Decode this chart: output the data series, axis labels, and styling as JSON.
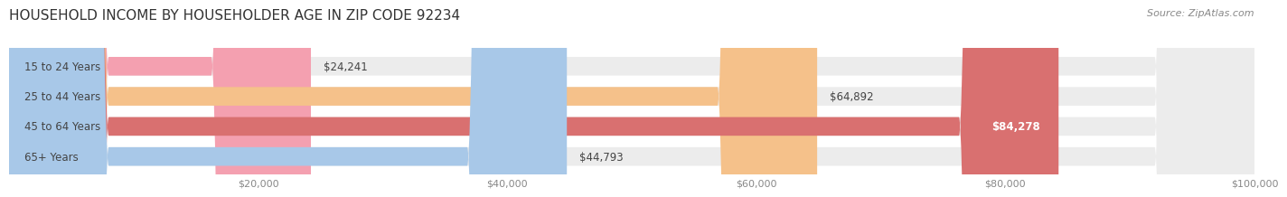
{
  "title": "HOUSEHOLD INCOME BY HOUSEHOLDER AGE IN ZIP CODE 92234",
  "source": "Source: ZipAtlas.com",
  "categories": [
    "15 to 24 Years",
    "25 to 44 Years",
    "45 to 64 Years",
    "65+ Years"
  ],
  "values": [
    24241,
    64892,
    84278,
    44793
  ],
  "bar_colors": [
    "#f4a0b0",
    "#f5c18a",
    "#d97070",
    "#a8c8e8"
  ],
  "label_colors": [
    "#555555",
    "#555555",
    "#ffffff",
    "#555555"
  ],
  "bar_background": "#eeeeee",
  "background_color": "#ffffff",
  "xlim": [
    0,
    100000
  ],
  "xticks": [
    0,
    20000,
    40000,
    60000,
    80000,
    100000
  ],
  "xtick_labels": [
    "",
    "$20,000",
    "$40,000",
    "$60,000",
    "$80,000",
    "$100,000"
  ],
  "title_fontsize": 11,
  "source_fontsize": 8,
  "label_fontsize": 8.5,
  "value_fontsize": 8.5,
  "tick_fontsize": 8
}
